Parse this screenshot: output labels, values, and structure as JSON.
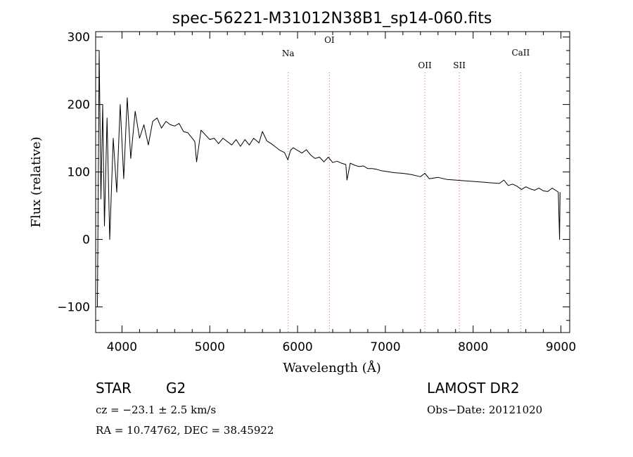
{
  "chart_data": {
    "type": "line",
    "title": "spec-56221-M31012N38B1_sp14-060.fits",
    "xlabel": "Wavelength (Å)",
    "ylabel": "Flux (relative)",
    "xlim": [
      3700,
      9100
    ],
    "ylim": [
      -138,
      308
    ],
    "xticks": [
      4000,
      5000,
      6000,
      7000,
      8000,
      9000
    ],
    "yticks": [
      -100,
      0,
      100,
      200,
      300
    ],
    "grid": false,
    "line_color": "#000000",
    "marker_line_color": "#e06060",
    "series": [
      {
        "x": [
          3720,
          3740,
          3760,
          3780,
          3800,
          3830,
          3860,
          3900,
          3940,
          3980,
          4020,
          4060,
          4100,
          4150,
          4200,
          4250,
          4300,
          4350,
          4400,
          4450,
          4500,
          4550,
          4600,
          4650,
          4700,
          4750,
          4800,
          4830,
          4850,
          4900,
          4950,
          5000,
          5050,
          5100,
          5150,
          5200,
          5250,
          5300,
          5350,
          5400,
          5450,
          5500,
          5560,
          5600,
          5650,
          5700,
          5750,
          5800,
          5850,
          5890,
          5920,
          5950,
          6000,
          6050,
          6100,
          6150,
          6200,
          6250,
          6300,
          6350,
          6400,
          6450,
          6500,
          6550,
          6563,
          6600,
          6650,
          6700,
          6750,
          6800,
          6850,
          6900,
          6950,
          7000,
          7100,
          7200,
          7300,
          7400,
          7450,
          7500,
          7600,
          7700,
          7800,
          7900,
          8000,
          8100,
          8200,
          8300,
          8350,
          8400,
          8450,
          8500,
          8550,
          8600,
          8650,
          8700,
          8750,
          8800,
          8850,
          8900,
          8950,
          8970,
          8985,
          8990
        ],
        "y": [
          -100,
          280,
          60,
          200,
          20,
          180,
          0,
          150,
          70,
          200,
          90,
          210,
          120,
          190,
          150,
          170,
          140,
          175,
          180,
          165,
          175,
          170,
          168,
          172,
          160,
          158,
          150,
          145,
          115,
          162,
          155,
          148,
          150,
          142,
          150,
          145,
          140,
          148,
          138,
          148,
          140,
          150,
          143,
          160,
          146,
          142,
          137,
          132,
          129,
          118,
          132,
          136,
          132,
          128,
          133,
          125,
          120,
          122,
          115,
          122,
          114,
          116,
          113,
          111,
          88,
          113,
          110,
          108,
          109,
          105,
          105,
          104,
          102,
          101,
          99,
          98,
          96,
          93,
          98,
          90,
          92,
          89,
          88,
          87,
          86,
          85,
          84,
          83,
          88,
          80,
          82,
          79,
          74,
          78,
          75,
          73,
          76,
          72,
          71,
          76,
          72,
          70,
          0,
          70
        ]
      }
    ],
    "lines": [
      {
        "label": "Na",
        "x": 5893
      },
      {
        "label": "OI",
        "x": 6363
      },
      {
        "label": "OII",
        "x": 7450
      },
      {
        "label": "SII",
        "x": 7843
      },
      {
        "label": "CaII",
        "x": 8542
      }
    ]
  },
  "footer": {
    "object_class": "STAR",
    "subclass": "G2",
    "survey": "LAMOST DR2",
    "cz": "cz = −23.1 ± 2.5 km/s",
    "obs_date": "Obs−Date: 20121020",
    "coords": "RA =  10.74762, DEC =  38.45922"
  }
}
